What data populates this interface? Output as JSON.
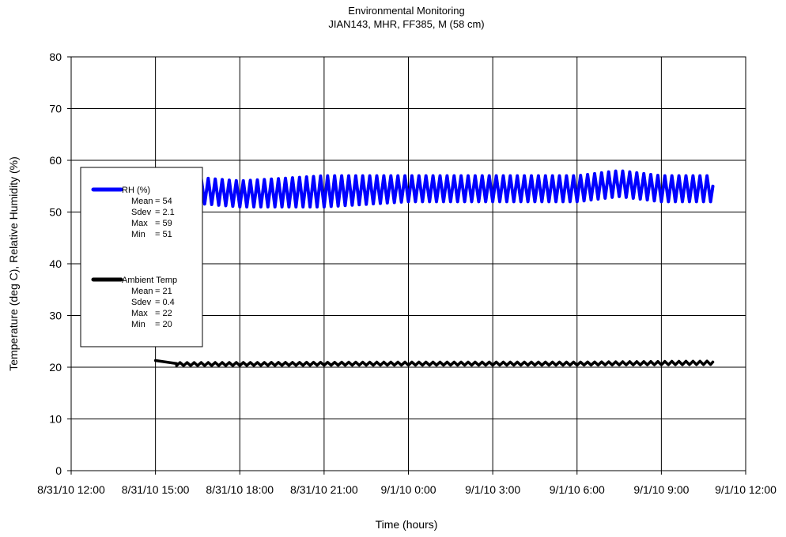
{
  "chart_data": {
    "type": "line",
    "title": "Environmental Monitoring",
    "subtitle": "JIAN143, MHR, FF385, M (58 cm)",
    "xlabel": "Time (hours)",
    "ylabel": "Temperature (deg C), Relative Humidity (%)",
    "xlim": [
      "8/31/10 12:00",
      "9/1/10 12:00"
    ],
    "ylim": [
      0,
      80
    ],
    "y_ticks": [
      0,
      10,
      20,
      30,
      40,
      50,
      60,
      70,
      80
    ],
    "x_tick_labels": [
      "8/31/10 12:00",
      "8/31/10 15:00",
      "8/31/10 18:00",
      "8/31/10 21:00",
      "9/1/10 0:00",
      "9/1/10 3:00",
      "9/1/10 6:00",
      "9/1/10 9:00",
      "9/1/10 12:00"
    ],
    "grid": true,
    "legend_position": "left",
    "series": [
      {
        "name": "RH (%)",
        "color": "#0000ff",
        "stats": [
          {
            "label": "Mean",
            "value": "= 54"
          },
          {
            "label": "Sdev",
            "value": "= 2.1"
          },
          {
            "label": "Max",
            "value": "= 59"
          },
          {
            "label": "Min",
            "value": "= 51"
          }
        ],
        "x": [
          "8/31/10 15:45",
          "8/31/10 18:00",
          "8/31/10 21:00",
          "9/1/10 0:00",
          "9/1/10 3:00",
          "9/1/10 6:00",
          "9/1/10 7:30",
          "9/1/10 9:00",
          "9/1/10 10:50"
        ],
        "y_low": [
          52,
          51,
          51,
          52,
          52,
          52,
          53,
          52,
          52
        ],
        "y_high": [
          57,
          56,
          57,
          57,
          57,
          57,
          58,
          57,
          57
        ],
        "cycle_minutes": 15,
        "end_value": 55
      },
      {
        "name": "Ambient Temp",
        "color": "#000000",
        "stats": [
          {
            "label": "Mean",
            "value": "= 21"
          },
          {
            "label": "Sdev",
            "value": "= 0.4"
          },
          {
            "label": "Max",
            "value": "= 22"
          },
          {
            "label": "Min",
            "value": "= 20"
          }
        ],
        "lead_in": [
          {
            "x": "8/31/10 15:00",
            "y": 21.3
          },
          {
            "x": "8/31/10 15:45",
            "y": 20.7
          }
        ],
        "x": [
          "8/31/10 15:45",
          "9/1/10 0:00",
          "9/1/10 6:00",
          "9/1/10 10:50"
        ],
        "y_low": [
          20.3,
          20.4,
          20.4,
          20.5
        ],
        "y_high": [
          20.9,
          21.0,
          21.0,
          21.2
        ],
        "cycle_minutes": 15,
        "end_value": 21
      }
    ]
  }
}
